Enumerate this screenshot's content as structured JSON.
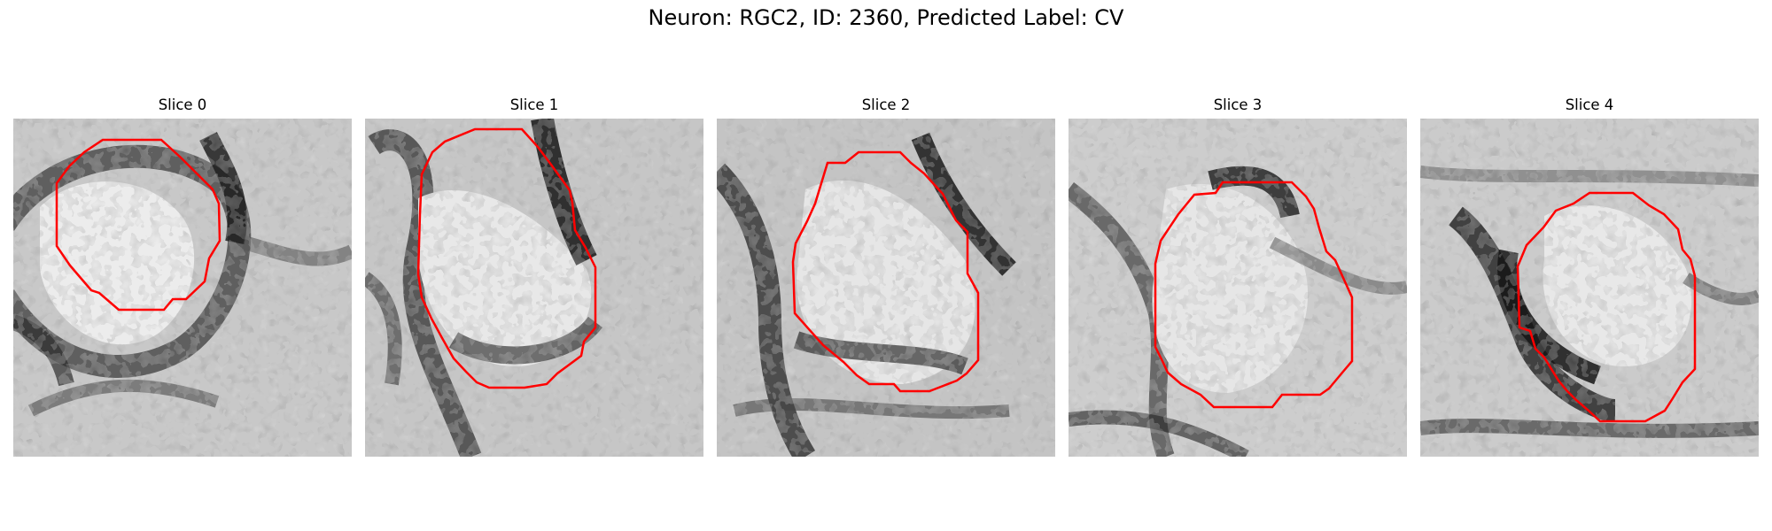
{
  "figure": {
    "title": "Neuron: RGC2, ID: 2360, Predicted Label: CV"
  },
  "colors": {
    "contour": "#ff0000",
    "background": "#ffffff"
  },
  "panels": [
    {
      "title": "Slice 0"
    },
    {
      "title": "Slice 1"
    },
    {
      "title": "Slice 2"
    },
    {
      "title": "Slice 3"
    },
    {
      "title": "Slice 4"
    }
  ]
}
